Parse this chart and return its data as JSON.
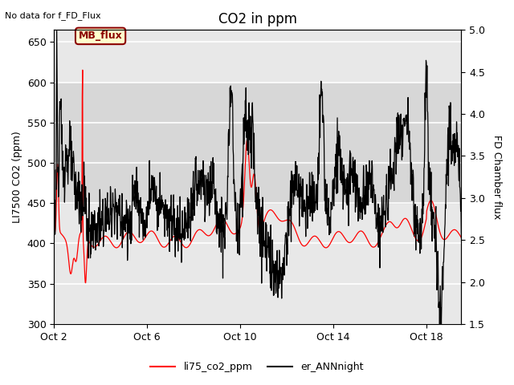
{
  "title": "CO2 in ppm",
  "top_left_text": "No data for f_FD_Flux",
  "ylabel_left": "LI7500 CO2 (ppm)",
  "ylabel_right": "FD Chamber flux",
  "ylim_left": [
    300,
    665
  ],
  "ylim_right": [
    1.5,
    5.0
  ],
  "yticks_left": [
    300,
    350,
    400,
    450,
    500,
    550,
    600,
    650
  ],
  "yticks_right": [
    1.5,
    2.0,
    2.5,
    3.0,
    3.5,
    4.0,
    4.5,
    5.0
  ],
  "xtick_positions": [
    0,
    4,
    8,
    12,
    16
  ],
  "xtick_labels": [
    "Oct 2",
    "Oct 6",
    "Oct 10",
    "Oct 14",
    "Oct 18"
  ],
  "xlim": [
    0,
    17.5
  ],
  "legend_labels": [
    "li75_co2_ppm",
    "er_ANNnight"
  ],
  "box_label": "MB_flux",
  "box_color": "#ffffcc",
  "box_edge_color": "#8B0000",
  "plot_bg_color": "#e8e8e8",
  "band_color": "#d0d0d0",
  "grid_color": "white",
  "title_fontsize": 12,
  "label_fontsize": 9,
  "tick_fontsize": 9,
  "figsize": [
    6.4,
    4.8
  ],
  "dpi": 100,
  "n_points": 1200,
  "x_days": 17.5
}
